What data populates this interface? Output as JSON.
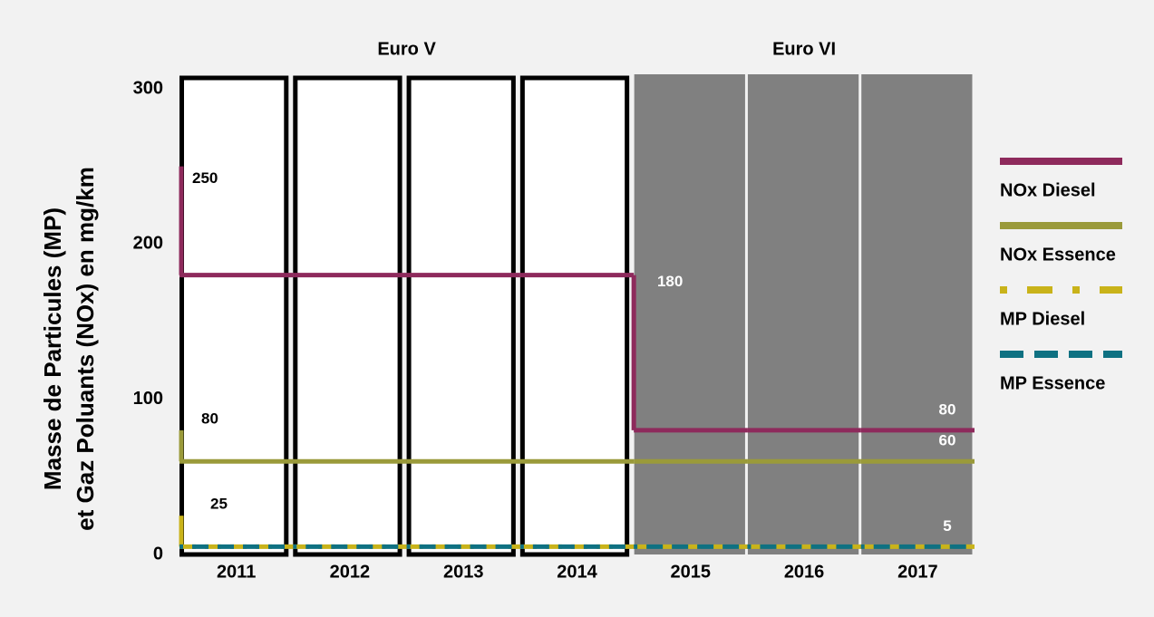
{
  "chart_data": {
    "type": "step-line",
    "y_label": [
      "Masse de Particules (MP)",
      "et Gaz Poluants (NOx) en mg/km"
    ],
    "categories": [
      "2011",
      "2012",
      "2013",
      "2014",
      "2015",
      "2016",
      "2017"
    ],
    "periods": [
      {
        "label": "Euro V",
        "count": 4,
        "style": "outline"
      },
      {
        "label": "Euro VI",
        "count": 3,
        "style": "filled"
      }
    ],
    "ylim": [
      0,
      300
    ],
    "yticks": [
      0,
      100,
      200,
      300
    ],
    "series": [
      {
        "name": "NOx Diesel",
        "color": "#8e2a5c",
        "dash": "solid",
        "start": 250,
        "values": [
          180,
          180,
          180,
          180,
          80,
          80,
          80
        ],
        "show_labels": true
      },
      {
        "name": "NOx Essence",
        "color": "#9a9a3a",
        "dash": "solid",
        "start": 80,
        "values": [
          60,
          60,
          60,
          60,
          60,
          60,
          60
        ],
        "show_labels": true
      },
      {
        "name": "MP Diesel",
        "color": "#c9b31a",
        "dash": "dashed",
        "start": 25,
        "values": [
          5,
          5,
          5,
          5,
          5,
          5,
          5
        ],
        "show_labels": true
      },
      {
        "name": "MP Essence",
        "color": "#0f7182",
        "dash": "dashed",
        "values": [
          5,
          5,
          5,
          5,
          5,
          5,
          5
        ],
        "show_labels": false
      }
    ],
    "legend": "right"
  }
}
